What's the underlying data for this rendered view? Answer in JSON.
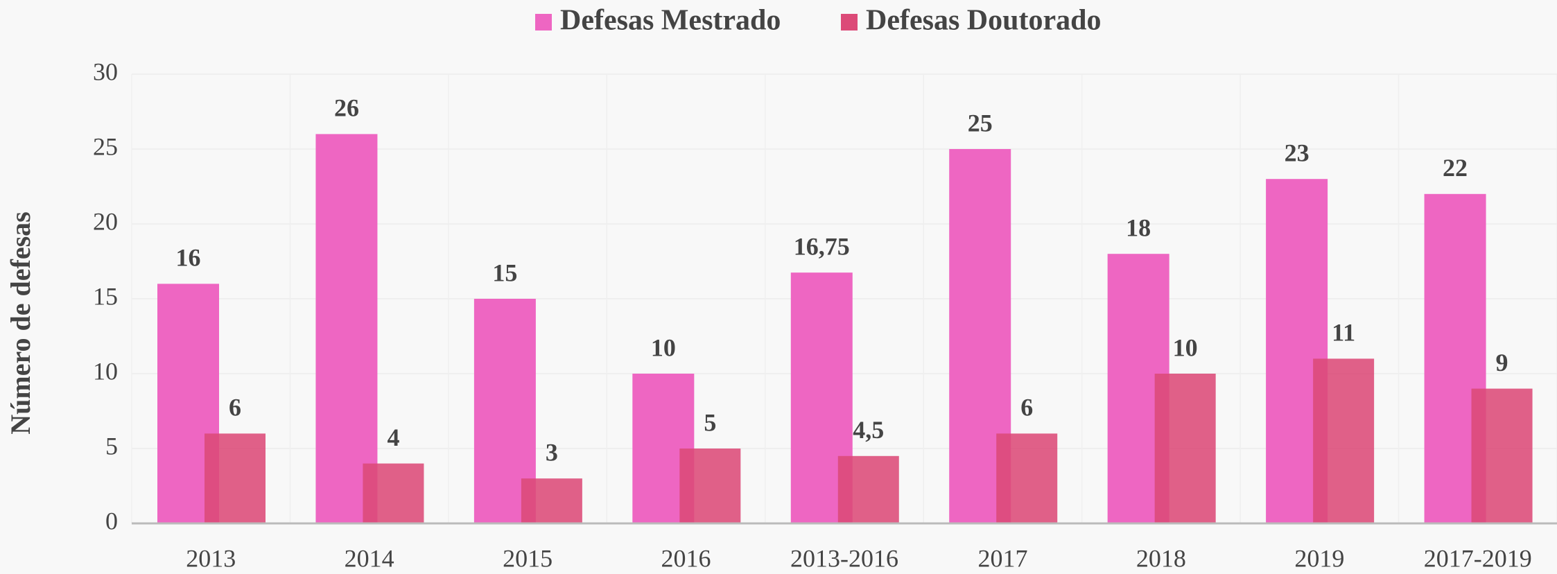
{
  "chart_data": {
    "type": "bar",
    "y_label": "Número de defesas",
    "categories": [
      "2013",
      "2014",
      "2015",
      "2016",
      "2013-2016",
      "2017",
      "2018",
      "2019",
      "2017-2019"
    ],
    "series": [
      {
        "name": "Defesas Mestrado",
        "color": "#ee66c2",
        "values": [
          16,
          26,
          15,
          10,
          16.75,
          25,
          18,
          23,
          22
        ],
        "value_labels": [
          "16",
          "26",
          "15",
          "10",
          "16,75",
          "25",
          "18",
          "23",
          "22"
        ]
      },
      {
        "name": "Defesas Doutorado",
        "color": "#dc4a78",
        "values": [
          6,
          4,
          3,
          5,
          4.5,
          6,
          10,
          11,
          9
        ],
        "value_labels": [
          "6",
          "4",
          "3",
          "5",
          "4,5",
          "6",
          "10",
          "11",
          "9"
        ]
      }
    ],
    "ylim": [
      0,
      30
    ],
    "yticks": [
      0,
      5,
      10,
      15,
      20,
      25,
      30
    ],
    "grid": true,
    "legend": "top"
  }
}
